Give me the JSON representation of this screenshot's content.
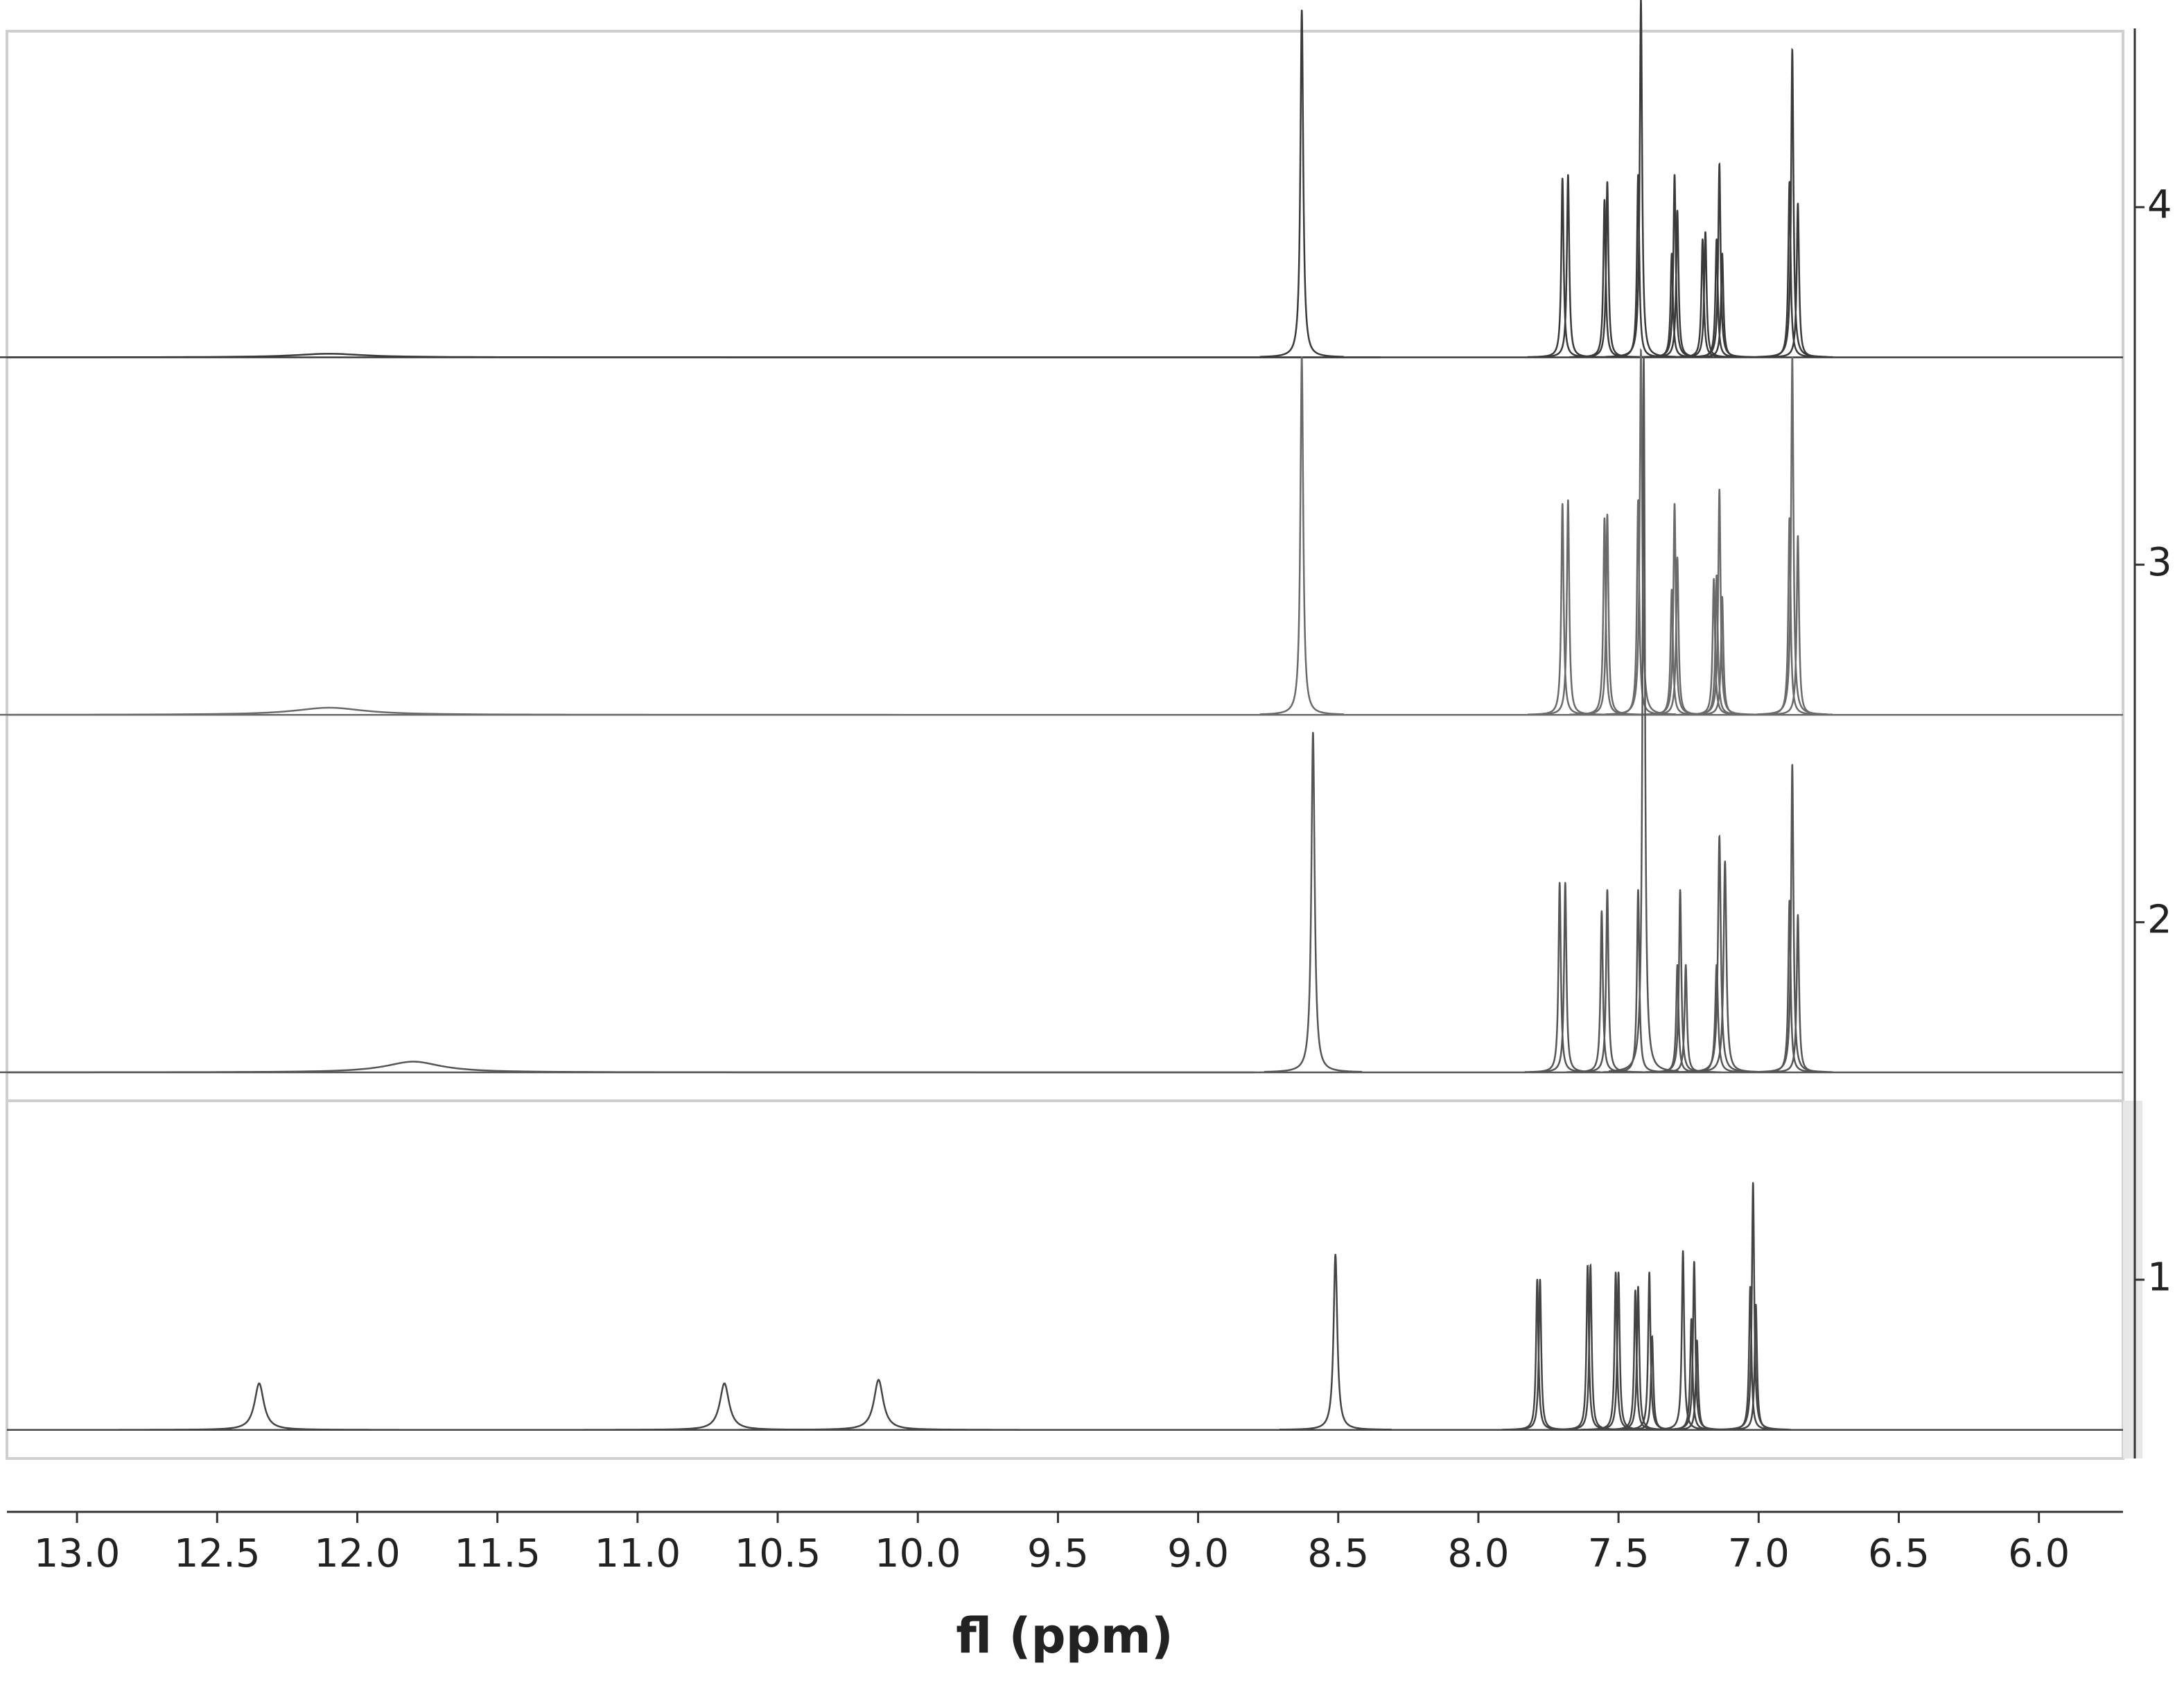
{
  "chart_data": {
    "type": "spectrum",
    "xlabel": "fl (ppm)",
    "xlim": [
      13.25,
      5.7
    ],
    "xticks": [
      {
        "value": 13.0,
        "label": "13.0"
      },
      12.5,
      {
        "value": 12.0,
        "label": "12.0"
      },
      11.5,
      {
        "value": 11.0,
        "label": "11.0"
      },
      10.5,
      {
        "value": 10.0,
        "label": "10.0"
      },
      9.5,
      {
        "value": 9.0,
        "label": "9.0"
      },
      8.5,
      {
        "value": 8.0,
        "label": "8.0"
      },
      7.5,
      {
        "value": 7.0,
        "label": "7.0"
      },
      6.5,
      {
        "value": 6.0,
        "label": "6.0"
      }
    ],
    "ylim": [
      0.5,
      4.5
    ],
    "yticks": [
      1,
      2,
      3,
      4
    ],
    "y_axis_position": "right",
    "series": [
      {
        "color": "#3a3a3a",
        "baseline": 3.58,
        "peaks": [
          12.1,
          8.63,
          7.7,
          7.68,
          7.55,
          7.54,
          7.43,
          7.42,
          7.31,
          7.3,
          7.29,
          7.2,
          7.19,
          7.15,
          7.14,
          7.13,
          6.89,
          6.88,
          6.86
        ],
        "values": [
          3.59,
          4.55,
          4.08,
          4.09,
          4.02,
          4.07,
          4.09,
          4.58,
          3.87,
          4.09,
          3.99,
          3.91,
          3.93,
          3.91,
          4.12,
          3.87,
          4.07,
          4.44,
          4.01
        ],
        "widths": [
          0.15,
          0.006,
          0.005,
          0.005,
          0.005,
          0.005,
          0.005,
          0.005,
          0.005,
          0.005,
          0.005,
          0.005,
          0.005,
          0.005,
          0.005,
          0.005,
          0.005,
          0.005,
          0.005
        ]
      },
      {
        "color": "#6a6a6a",
        "baseline": 2.58,
        "peaks": [
          12.1,
          8.63,
          7.7,
          7.68,
          7.55,
          7.54,
          7.43,
          7.42,
          7.31,
          7.3,
          7.29,
          7.16,
          7.15,
          7.14,
          7.13,
          6.89,
          6.88,
          6.86
        ],
        "values": [
          2.6,
          3.58,
          3.17,
          3.18,
          3.13,
          3.14,
          3.18,
          3.6,
          2.93,
          3.17,
          3.02,
          2.96,
          2.97,
          3.21,
          2.91,
          3.13,
          3.58,
          3.08
        ],
        "widths": [
          0.15,
          0.006,
          0.005,
          0.005,
          0.005,
          0.005,
          0.005,
          0.005,
          0.005,
          0.005,
          0.005,
          0.005,
          0.005,
          0.005,
          0.005,
          0.005,
          0.005,
          0.005
        ]
      },
      {
        "color": "#555555",
        "baseline": 1.58,
        "peaks": [
          11.8,
          8.59,
          7.71,
          7.69,
          7.56,
          7.54,
          7.43,
          7.41,
          7.29,
          7.28,
          7.26,
          7.15,
          7.14,
          7.12,
          6.89,
          6.88,
          6.86
        ],
        "values": [
          1.61,
          2.53,
          2.11,
          2.11,
          2.03,
          2.09,
          2.09,
          3.58,
          1.88,
          2.09,
          1.88,
          1.88,
          2.24,
          2.17,
          2.06,
          2.44,
          2.02
        ],
        "widths": [
          0.12,
          0.007,
          0.005,
          0.005,
          0.005,
          0.005,
          0.005,
          0.005,
          0.005,
          0.005,
          0.005,
          0.006,
          0.006,
          0.006,
          0.005,
          0.005,
          0.005
        ]
      },
      {
        "color": "#444444",
        "baseline": 0.58,
        "peaks": [
          12.35,
          10.69,
          10.14,
          8.51,
          7.79,
          7.78,
          7.61,
          7.6,
          7.51,
          7.5,
          7.44,
          7.43,
          7.39,
          7.38,
          7.27,
          7.24,
          7.23,
          7.22,
          7.03,
          7.02,
          7.01
        ],
        "values": [
          0.71,
          0.71,
          0.72,
          1.07,
          1.0,
          1.0,
          1.04,
          1.04,
          1.02,
          1.02,
          0.97,
          0.98,
          1.02,
          0.84,
          1.08,
          0.89,
          1.05,
          0.83,
          0.98,
          1.27,
          0.93
        ],
        "widths": [
          0.02,
          0.02,
          0.02,
          0.008,
          0.005,
          0.005,
          0.005,
          0.005,
          0.005,
          0.005,
          0.005,
          0.005,
          0.005,
          0.005,
          0.005,
          0.005,
          0.005,
          0.005,
          0.005,
          0.005,
          0.005
        ]
      }
    ]
  }
}
